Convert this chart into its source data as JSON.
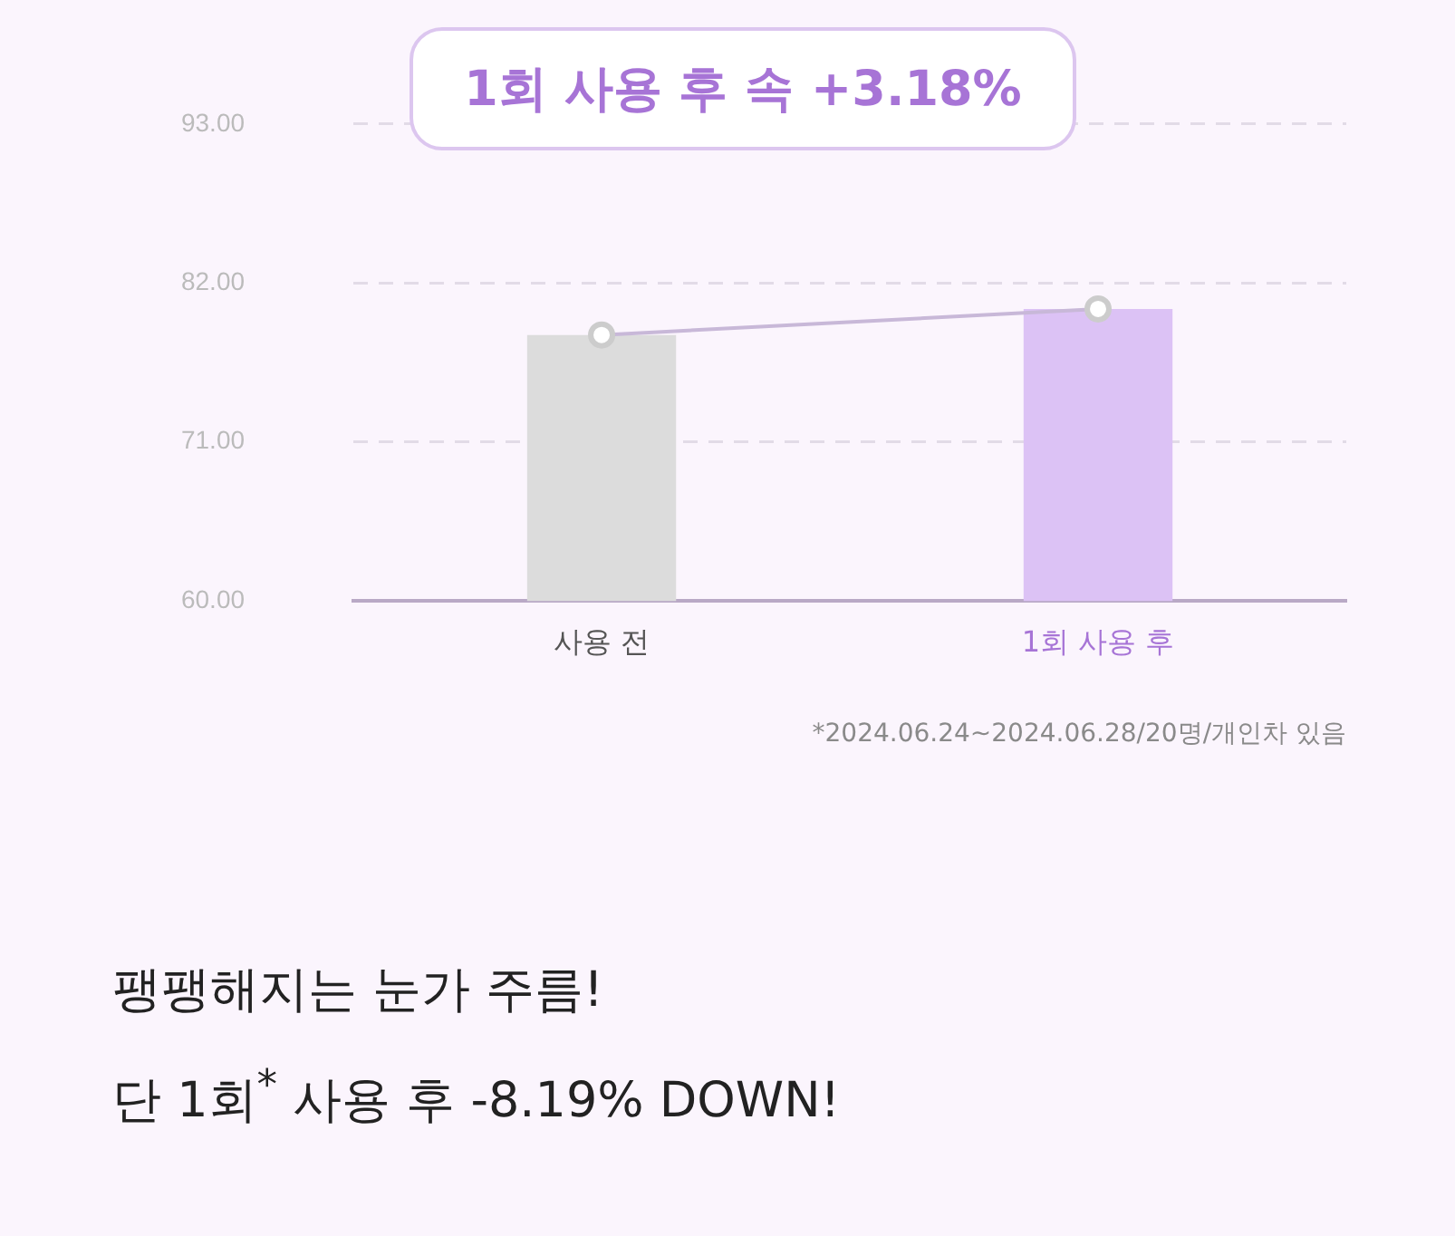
{
  "chart_data": {
    "type": "bar",
    "title": "1회 사용 후 속 +3.18%",
    "categories": [
      "사용 전",
      "1회 사용 후"
    ],
    "series": [
      {
        "colors": [
          "#dcdcdc",
          "#dcc2f5"
        ],
        "values": [
          78.4,
          80.2
        ]
      },
      {
        "type": "line",
        "color": "#c8b8d8",
        "values": [
          78.4,
          80.2
        ],
        "marker": "circle"
      }
    ],
    "ylim": [
      60,
      93
    ],
    "yticks": [
      {
        "value": 60,
        "label": "60.00"
      },
      {
        "value": 71,
        "label": "71.00"
      },
      {
        "value": 82,
        "label": "82.00"
      },
      {
        "value": 93,
        "label": "93.00"
      }
    ],
    "grid": "y",
    "annotations": [
      "*2024.06.24~2024.06.28/20명/개인차 있음",
      "팽팽해지는 눈가 주름!",
      "단 1회$^{*}$ 사용 후 -8.19% DOWN!"
    ]
  }
}
